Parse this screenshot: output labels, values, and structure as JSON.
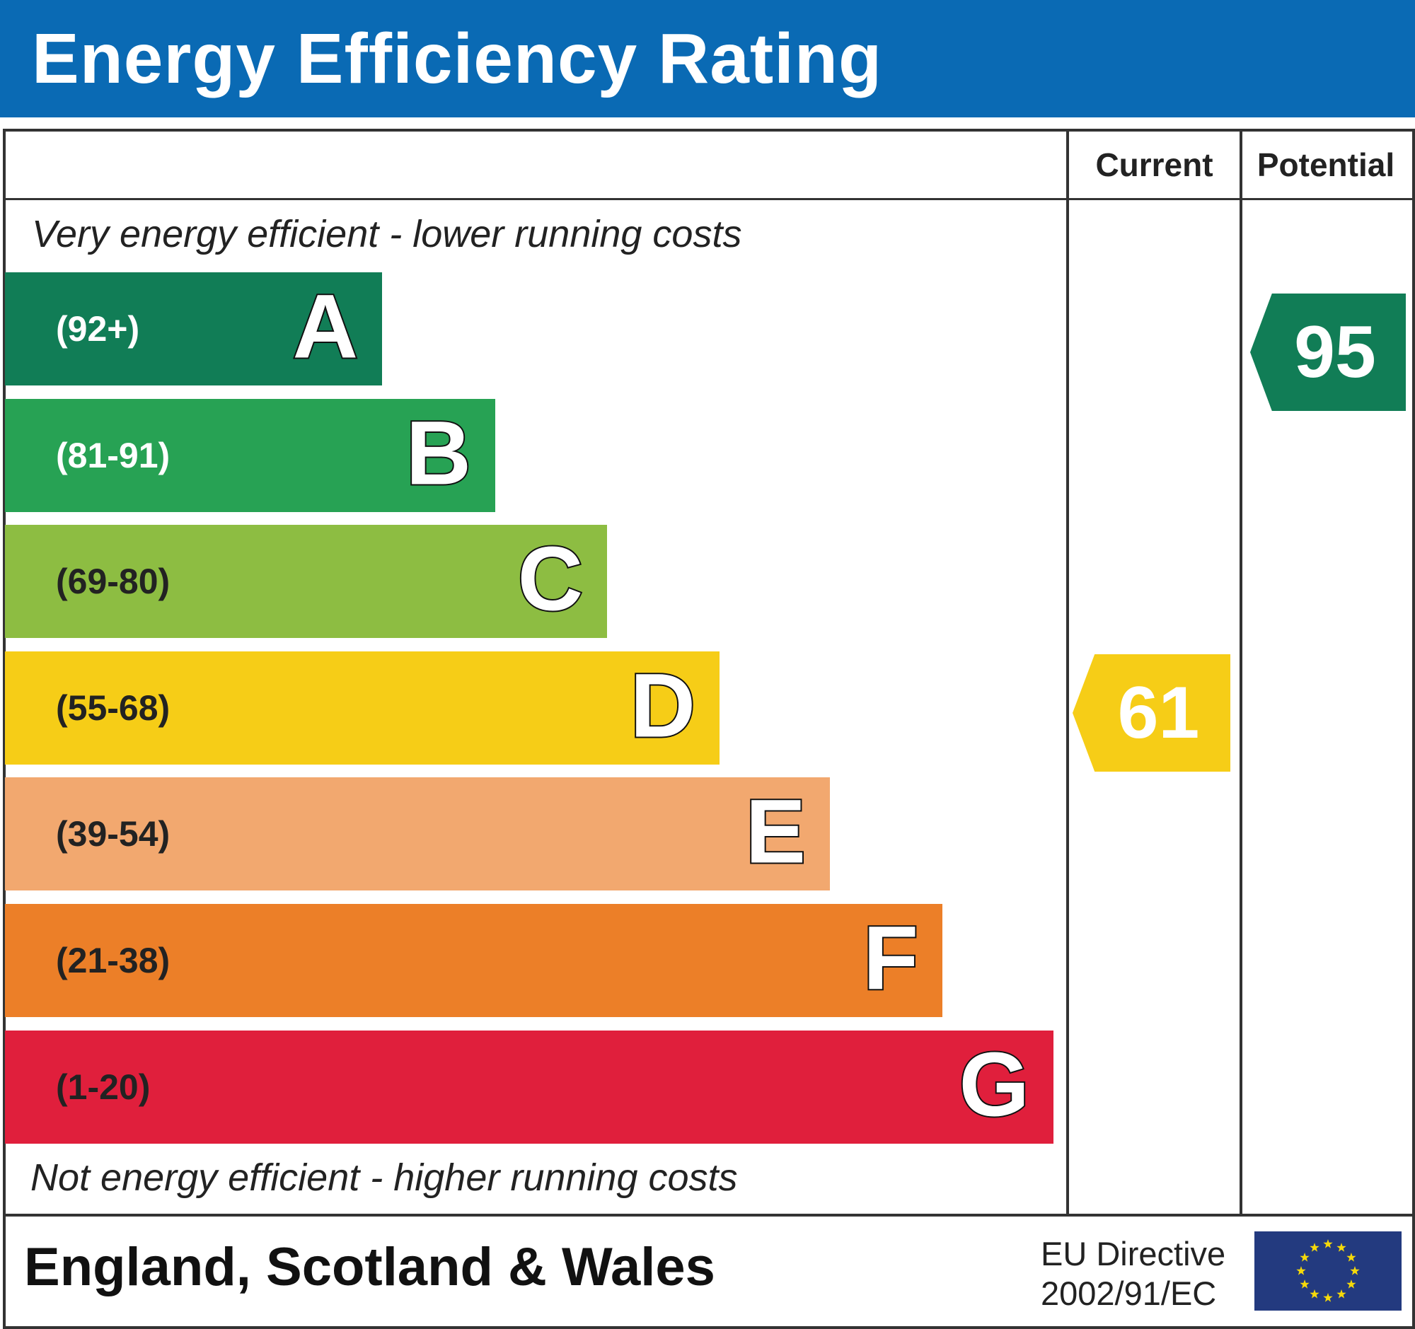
{
  "title": "Energy Efficiency Rating",
  "columns": {
    "current": "Current",
    "potential": "Potential"
  },
  "top_note": "Very energy efficient - lower running costs",
  "bottom_note": "Not energy efficient - higher running costs",
  "bands": [
    {
      "letter": "A",
      "range": "(92+)",
      "color": "#117d56",
      "range_color": "#ffffff"
    },
    {
      "letter": "B",
      "range": "(81-91)",
      "color": "#27a254",
      "range_color": "#ffffff"
    },
    {
      "letter": "C",
      "range": "(69-80)",
      "color": "#8dbd42",
      "range_color": "#222222"
    },
    {
      "letter": "D",
      "range": "(55-68)",
      "color": "#f6cd17",
      "range_color": "#222222"
    },
    {
      "letter": "E",
      "range": "(39-54)",
      "color": "#f2a86f",
      "range_color": "#222222"
    },
    {
      "letter": "F",
      "range": "(21-38)",
      "color": "#ec7f28",
      "range_color": "#222222"
    },
    {
      "letter": "G",
      "range": "(1-20)",
      "color": "#e01f3c",
      "range_color": "#222222"
    }
  ],
  "current": {
    "value": "61",
    "band": "D",
    "color": "#f6cd17"
  },
  "potential": {
    "value": "95",
    "band": "A",
    "color": "#117d56"
  },
  "footer": {
    "region": "England, Scotland & Wales",
    "directive_line1": "EU Directive",
    "directive_line2": "2002/91/EC",
    "flag": "eu-flag-icon"
  },
  "header_color": "#0a6ab4"
}
